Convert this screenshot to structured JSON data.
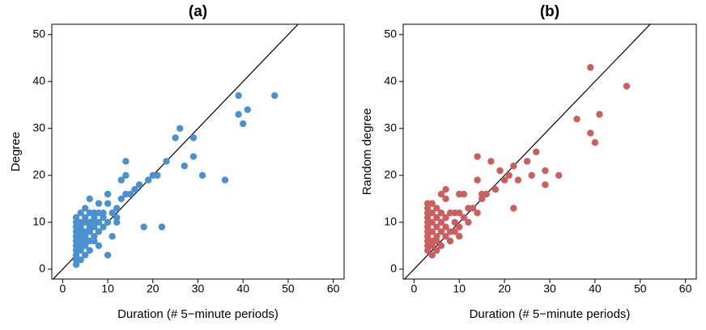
{
  "chart_data": [
    {
      "type": "scatter",
      "title": "(a)",
      "xlabel": "Duration (# 5−minute periods)",
      "ylabel": "Degree",
      "color": "#4b91cf",
      "x": [
        3,
        3,
        3,
        3,
        3,
        3,
        3,
        3,
        3,
        3,
        3,
        4,
        4,
        4,
        4,
        4,
        4,
        4,
        4,
        4,
        5,
        5,
        5,
        5,
        5,
        5,
        5,
        5,
        6,
        6,
        6,
        6,
        6,
        6,
        6,
        7,
        7,
        7,
        7,
        7,
        7,
        8,
        8,
        8,
        8,
        8,
        9,
        9,
        9,
        10,
        10,
        10,
        10,
        11,
        11,
        12,
        12,
        12,
        13,
        13,
        14,
        14,
        14,
        15,
        16,
        17,
        18,
        19,
        20,
        21,
        22,
        23,
        25,
        26,
        27,
        29,
        29,
        31,
        36,
        39,
        39,
        40,
        41,
        47
      ],
      "y": [
        1,
        2,
        4,
        5,
        6,
        7,
        8,
        9,
        10,
        11,
        3,
        2,
        4,
        5,
        6,
        7,
        8,
        9,
        10,
        12,
        3,
        5,
        6,
        7,
        8,
        10,
        11,
        13,
        4,
        6,
        8,
        9,
        10,
        12,
        15,
        6,
        7,
        9,
        10,
        11,
        12,
        5,
        8,
        10,
        12,
        14,
        9,
        11,
        12,
        3,
        10,
        14,
        16,
        7,
        12,
        10,
        11,
        13,
        15,
        19,
        16,
        20,
        23,
        16,
        17,
        18,
        9,
        19,
        20,
        20,
        9,
        23,
        28,
        30,
        22,
        24,
        28,
        20,
        19,
        37,
        33,
        31,
        34,
        37
      ],
      "xlim": [
        -2.4,
        62.4
      ],
      "ylim": [
        -2.1,
        52.2
      ],
      "xticks": [
        0,
        10,
        20,
        30,
        40,
        50,
        60
      ],
      "yticks": [
        0,
        10,
        20,
        30,
        40,
        50
      ]
    },
    {
      "type": "scatter",
      "title": "(b)",
      "xlabel": "Duration (# 5−minute periods)",
      "ylabel": "Random degree",
      "color": "#cb5f5f",
      "x": [
        3,
        3,
        3,
        3,
        3,
        3,
        3,
        3,
        3,
        3,
        3,
        4,
        4,
        4,
        4,
        4,
        4,
        4,
        5,
        5,
        5,
        5,
        5,
        5,
        6,
        6,
        6,
        6,
        6,
        7,
        7,
        7,
        7,
        7,
        8,
        8,
        8,
        9,
        9,
        9,
        10,
        10,
        10,
        10,
        11,
        11,
        12,
        12,
        13,
        14,
        14,
        14,
        15,
        15,
        16,
        17,
        18,
        19,
        20,
        21,
        22,
        22,
        23,
        25,
        26,
        27,
        29,
        29,
        32,
        36,
        39,
        39,
        40,
        41,
        47
      ],
      "y": [
        4,
        5,
        6,
        7,
        8,
        9,
        10,
        11,
        12,
        13,
        14,
        3,
        5,
        6,
        8,
        10,
        12,
        14,
        4,
        6,
        7,
        9,
        11,
        13,
        5,
        8,
        10,
        12,
        16,
        7,
        9,
        11,
        15,
        17,
        6,
        8,
        12,
        8,
        10,
        12,
        7,
        9,
        12,
        16,
        11,
        16,
        10,
        13,
        13,
        12,
        19,
        24,
        15,
        16,
        16,
        23,
        17,
        21,
        19,
        20,
        22,
        13,
        19,
        23,
        20,
        25,
        21,
        18,
        20,
        32,
        43,
        29,
        27,
        33,
        39
      ],
      "xlim": [
        -2.4,
        62.4
      ],
      "ylim": [
        -2.1,
        52.2
      ],
      "xticks": [
        0,
        10,
        20,
        30,
        40,
        50,
        60
      ],
      "yticks": [
        0,
        10,
        20,
        30,
        40,
        50
      ]
    }
  ]
}
